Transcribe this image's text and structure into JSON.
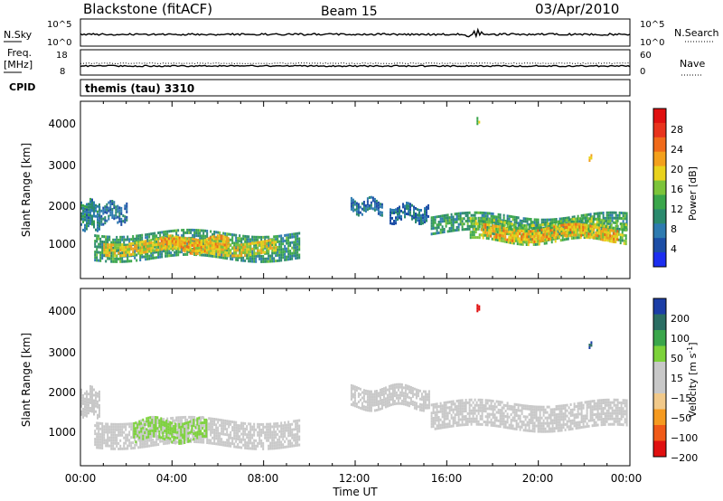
{
  "header": {
    "station": "Blackstone (fitACF)",
    "beam": "Beam 15",
    "date": "03/Apr/2010"
  },
  "status_panels": {
    "nsky_label": "N.Sky",
    "nsky_ticks": [
      "10^5",
      "10^0"
    ],
    "nsearch_label": "N.Search",
    "nsearch_ticks": [
      "10^5",
      "10^0"
    ],
    "freq_label": "Freq.",
    "freq_unit": "[MHz]",
    "freq_ticks": [
      "18",
      "8"
    ],
    "nave_label": "Nave",
    "nave_ticks": [
      "60",
      "0"
    ],
    "cpid_label": "CPID",
    "cpid_text": "themis (tau) 3310"
  },
  "colors": {
    "power_scale": [
      "#1c2ef0",
      "#1c4ea6",
      "#2e7bb0",
      "#2b8a6d",
      "#3aa64b",
      "#7cc43a",
      "#e9d21c",
      "#f3a01c",
      "#f06a1a",
      "#e8331c",
      "#e01010"
    ],
    "velocity_scale": [
      "#e01010",
      "#f05a18",
      "#f59a20",
      "#f1c98a",
      "#c8c8c8",
      "#c8c8c8",
      "#7cd23a",
      "#3aa64b",
      "#2b6e63",
      "#1c3ea6"
    ]
  },
  "chart_data": [
    {
      "type": "heatmap",
      "panel": "power",
      "ylabel": "Slant Range [km]",
      "yticks": [
        "1000",
        "2000",
        "3000",
        "4000"
      ],
      "ylim": [
        0,
        4600
      ],
      "xlim": [
        0,
        24
      ],
      "colorbar_label": "Power [dB]",
      "colorbar_ticks": [
        "4",
        "8",
        "12",
        "16",
        "20",
        "24",
        "28"
      ],
      "colorbar_range": [
        0,
        32
      ],
      "bands": [
        {
          "t0": 0.0,
          "t1": 0.8,
          "r0": 1300,
          "r1": 2000,
          "level": 8
        },
        {
          "t0": 0.8,
          "t1": 2.0,
          "r0": 1500,
          "r1": 1950,
          "level": 6
        },
        {
          "t0": 0.6,
          "t1": 9.6,
          "r0": 550,
          "r1": 1200,
          "level": 10
        },
        {
          "t0": 1.0,
          "t1": 8.5,
          "r0": 650,
          "r1": 1000,
          "level": 18
        },
        {
          "t0": 3.5,
          "t1": 6.5,
          "r0": 750,
          "r1": 1050,
          "level": 20
        },
        {
          "t0": 11.8,
          "t1": 13.2,
          "r0": 1700,
          "r1": 2050,
          "level": 6
        },
        {
          "t0": 13.5,
          "t1": 15.2,
          "r0": 1500,
          "r1": 1900,
          "level": 6
        },
        {
          "t0": 15.3,
          "t1": 23.9,
          "r0": 1200,
          "r1": 1650,
          "level": 10
        },
        {
          "t0": 17.0,
          "t1": 23.8,
          "r0": 950,
          "r1": 1500,
          "level": 14
        },
        {
          "t0": 17.5,
          "t1": 23.5,
          "r0": 1050,
          "r1": 1350,
          "level": 20
        },
        {
          "t0": 17.3,
          "t1": 17.4,
          "r0": 3950,
          "r1": 4100,
          "level": 14
        },
        {
          "t0": 22.2,
          "t1": 22.3,
          "r0": 3050,
          "r1": 3150,
          "level": 20
        }
      ]
    },
    {
      "type": "heatmap",
      "panel": "velocity",
      "ylabel": "Slant Range [km]",
      "yticks": [
        "1000",
        "2000",
        "3000",
        "4000"
      ],
      "ylim": [
        0,
        4600
      ],
      "xlim": [
        0,
        24
      ],
      "xticks": [
        "00:00",
        "04:00",
        "08:00",
        "12:00",
        "16:00",
        "20:00",
        "00:00"
      ],
      "xlabel": "Time UT",
      "colorbar_label": "Velocity [m s",
      "colorbar_label_sup": "-1",
      "colorbar_label_end": "]",
      "colorbar_ticks": [
        "200",
        "100",
        "50",
        "15",
        "−15",
        "−50",
        "−100",
        "−200"
      ],
      "bands": [
        {
          "t0": 0.0,
          "t1": 0.8,
          "r0": 1300,
          "r1": 2000,
          "level": 0
        },
        {
          "t0": 0.6,
          "t1": 9.6,
          "r0": 550,
          "r1": 1200,
          "level": 0
        },
        {
          "t0": 2.3,
          "t1": 5.5,
          "r0": 700,
          "r1": 1200,
          "level": 30
        },
        {
          "t0": 11.8,
          "t1": 15.2,
          "r0": 1500,
          "r1": 2050,
          "level": 0
        },
        {
          "t0": 15.3,
          "t1": 23.9,
          "r0": 1000,
          "r1": 1650,
          "level": 0
        },
        {
          "t0": 17.3,
          "t1": 17.4,
          "r0": 3950,
          "r1": 4100,
          "level": -150
        },
        {
          "t0": 22.2,
          "t1": 22.3,
          "r0": 3050,
          "r1": 3150,
          "level": 150
        }
      ]
    }
  ]
}
